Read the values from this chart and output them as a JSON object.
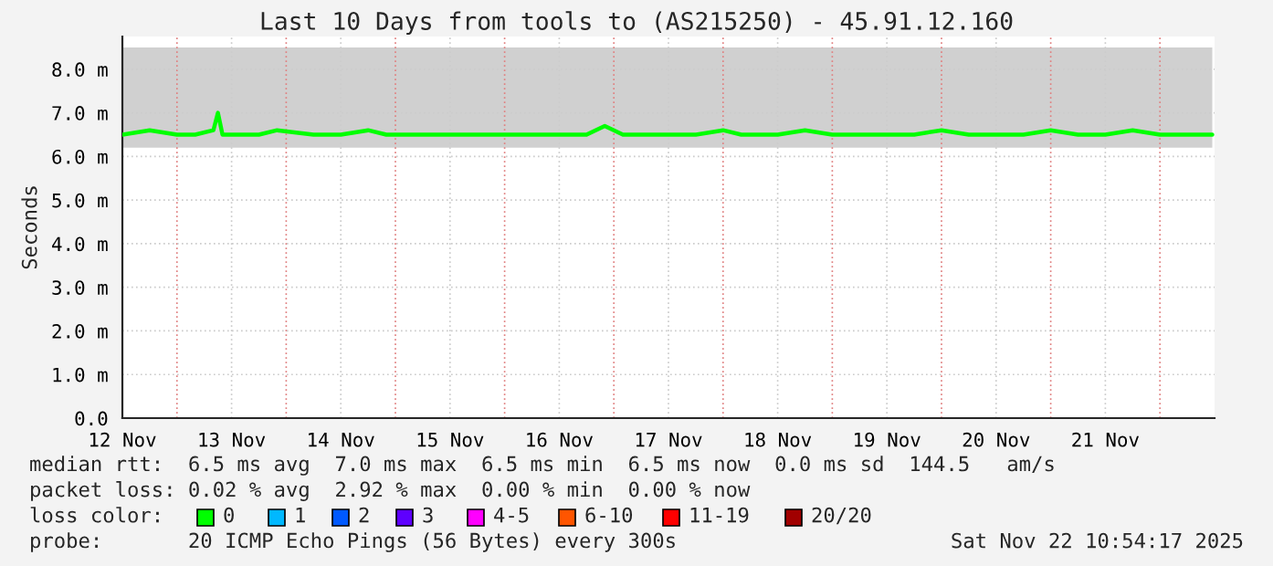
{
  "chart_data": {
    "type": "line",
    "title": "Last 10 Days from tools to (AS215250) - 45.91.12.160",
    "ylabel": "Seconds",
    "xlim": [
      "2025-11-12T00:00",
      "2025-11-22T00:00"
    ],
    "xticks": [
      {
        "value": "2025-11-12T00:00",
        "label": "12 Nov"
      },
      {
        "value": "2025-11-12T12:00",
        "label": null
      },
      {
        "value": "2025-11-13T00:00",
        "label": "13 Nov"
      },
      {
        "value": "2025-11-13T12:00",
        "label": null
      },
      {
        "value": "2025-11-14T00:00",
        "label": "14 Nov"
      },
      {
        "value": "2025-11-14T12:00",
        "label": null
      },
      {
        "value": "2025-11-15T00:00",
        "label": "15 Nov"
      },
      {
        "value": "2025-11-15T12:00",
        "label": null
      },
      {
        "value": "2025-11-16T00:00",
        "label": "16 Nov"
      },
      {
        "value": "2025-11-16T12:00",
        "label": null
      },
      {
        "value": "2025-11-17T00:00",
        "label": "17 Nov"
      },
      {
        "value": "2025-11-17T12:00",
        "label": null
      },
      {
        "value": "2025-11-18T00:00",
        "label": "18 Nov"
      },
      {
        "value": "2025-11-18T12:00",
        "label": null
      },
      {
        "value": "2025-11-19T00:00",
        "label": "19 Nov"
      },
      {
        "value": "2025-11-19T12:00",
        "label": null
      },
      {
        "value": "2025-11-20T00:00",
        "label": "20 Nov"
      },
      {
        "value": "2025-11-20T12:00",
        "label": null
      },
      {
        "value": "2025-11-21T00:00",
        "label": "21 Nov"
      },
      {
        "value": "2025-11-21T12:00",
        "label": null
      }
    ],
    "ylim": [
      0,
      8.75
    ],
    "yticks": [
      {
        "value": 0,
        "label": "0.0"
      },
      {
        "value": 1,
        "label": "1.0 m"
      },
      {
        "value": 2,
        "label": "2.0 m"
      },
      {
        "value": 3,
        "label": "3.0 m"
      },
      {
        "value": 4,
        "label": "4.0 m"
      },
      {
        "value": 5,
        "label": "5.0 m"
      },
      {
        "value": 6,
        "label": "6.0 m"
      },
      {
        "value": 7,
        "label": "7.0 m"
      },
      {
        "value": 8,
        "label": "8.0 m"
      }
    ],
    "grid": true,
    "series": [
      {
        "color": "#00ff00",
        "x": [
          "2025-11-12T00:00",
          "2025-11-12T06:00",
          "2025-11-12T12:00",
          "2025-11-12T16:00",
          "2025-11-12T20:00",
          "2025-11-12T21:00",
          "2025-11-12T22:00",
          "2025-11-13T06:00",
          "2025-11-13T10:00",
          "2025-11-13T18:00",
          "2025-11-14T00:00",
          "2025-11-14T06:00",
          "2025-11-14T10:00",
          "2025-11-14T16:00",
          "2025-11-15T00:00",
          "2025-11-15T12:00",
          "2025-11-16T00:00",
          "2025-11-16T06:00",
          "2025-11-16T10:00",
          "2025-11-16T14:00",
          "2025-11-16T20:00",
          "2025-11-17T06:00",
          "2025-11-17T12:00",
          "2025-11-17T16:00",
          "2025-11-18T00:00",
          "2025-11-18T06:00",
          "2025-11-18T12:00",
          "2025-11-18T18:00",
          "2025-11-19T00:00",
          "2025-11-19T06:00",
          "2025-11-19T12:00",
          "2025-11-19T18:00",
          "2025-11-20T00:00",
          "2025-11-20T06:00",
          "2025-11-20T12:00",
          "2025-11-20T18:00",
          "2025-11-21T00:00",
          "2025-11-21T06:00",
          "2025-11-21T12:00",
          "2025-11-21T18:00",
          "2025-11-21T23:30"
        ],
        "values": [
          6.5,
          6.6,
          6.5,
          6.5,
          6.6,
          7.0,
          6.5,
          6.5,
          6.6,
          6.5,
          6.5,
          6.6,
          6.5,
          6.5,
          6.5,
          6.5,
          6.5,
          6.5,
          6.7,
          6.5,
          6.5,
          6.5,
          6.6,
          6.5,
          6.5,
          6.6,
          6.5,
          6.5,
          6.5,
          6.5,
          6.6,
          6.5,
          6.5,
          6.5,
          6.6,
          6.5,
          6.5,
          6.6,
          6.5,
          6.5,
          6.5
        ],
        "lower": [
          6.2,
          6.2,
          6.2,
          6.2,
          6.2,
          6.2,
          6.2,
          6.2,
          6.2,
          6.2,
          6.2,
          6.2,
          6.2,
          6.2,
          6.2,
          6.2,
          6.2,
          6.2,
          6.2,
          6.2,
          6.2,
          6.2,
          6.2,
          6.2,
          6.2,
          6.2,
          6.2,
          6.2,
          6.2,
          6.2,
          6.2,
          6.2,
          6.2,
          6.2,
          6.2,
          6.2,
          6.2,
          6.2,
          6.2,
          6.2,
          6.2
        ],
        "upper": [
          8.5,
          8.5,
          8.5,
          8.5,
          8.5,
          8.5,
          8.5,
          8.5,
          8.5,
          8.5,
          8.5,
          8.5,
          8.5,
          8.5,
          8.5,
          8.5,
          8.5,
          8.5,
          8.5,
          8.5,
          8.5,
          8.5,
          8.5,
          8.5,
          8.5,
          8.5,
          8.5,
          8.5,
          8.5,
          8.5,
          8.5,
          8.5,
          8.5,
          8.5,
          8.5,
          8.5,
          8.5,
          8.5,
          8.5,
          8.5,
          8.5
        ]
      }
    ],
    "annotations": [
      "median rtt:  6.5 ms avg  7.0 ms max  6.5 ms min  6.5 ms now  0.0 ms sd  144.5   am/s",
      "packet loss: 0.02 % avg  2.92 % max  0.00 % min  0.00 % now",
      "loss color:",
      "0",
      "1",
      "2",
      "3",
      "4-5",
      "6-10",
      "11-19",
      "20/20",
      "probe:       20 ICMP Echo Pings (56 Bytes) every 300s",
      "Sat Nov 22 10:54:17 2025"
    ]
  }
}
